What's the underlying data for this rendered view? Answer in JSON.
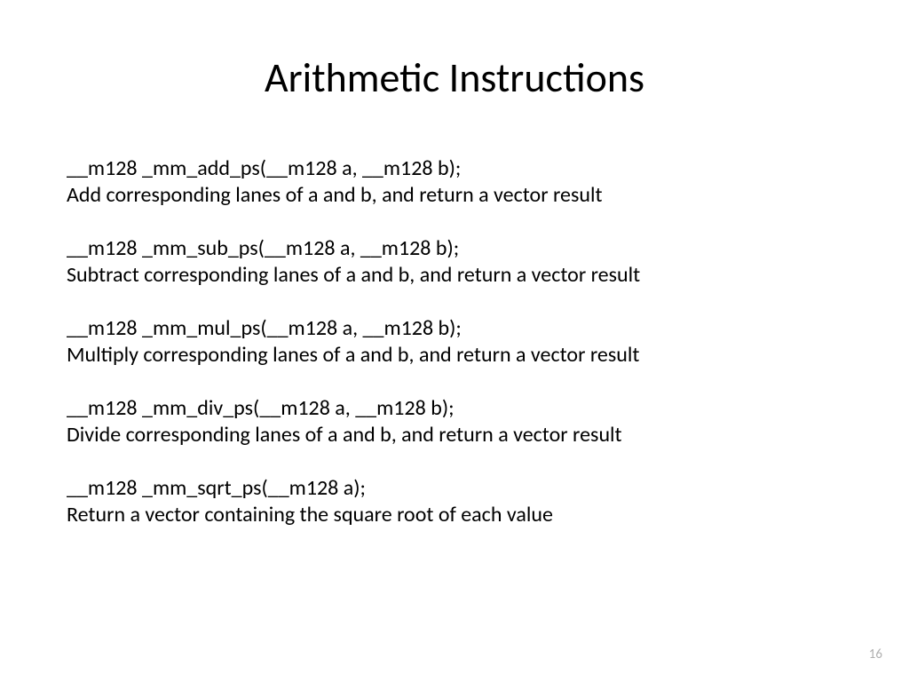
{
  "slide": {
    "title": "Arithmetic Instructions",
    "page_number": "16",
    "text_color": "#000000",
    "pagenum_color": "#b0b0b0",
    "background_color": "#ffffff",
    "title_fontsize": 46,
    "body_fontsize": 24,
    "entries": [
      {
        "signature": "__m128 _mm_add_ps(__m128 a, __m128 b);",
        "description": "Add corresponding lanes of a and b, and return a vector result"
      },
      {
        "signature": "__m128 _mm_sub_ps(__m128 a, __m128 b);",
        "description": "Subtract corresponding lanes of a and b, and return a vector result"
      },
      {
        "signature": "__m128 _mm_mul_ps(__m128 a, __m128 b);",
        "description": "Multiply corresponding lanes of a and b, and return a vector result"
      },
      {
        "signature": "__m128 _mm_div_ps(__m128 a, __m128 b);",
        "description": "Divide corresponding lanes of a and b, and return a vector result"
      },
      {
        "signature": "__m128 _mm_sqrt_ps(__m128 a);",
        "description": "Return a vector containing the square root of each value"
      }
    ]
  }
}
